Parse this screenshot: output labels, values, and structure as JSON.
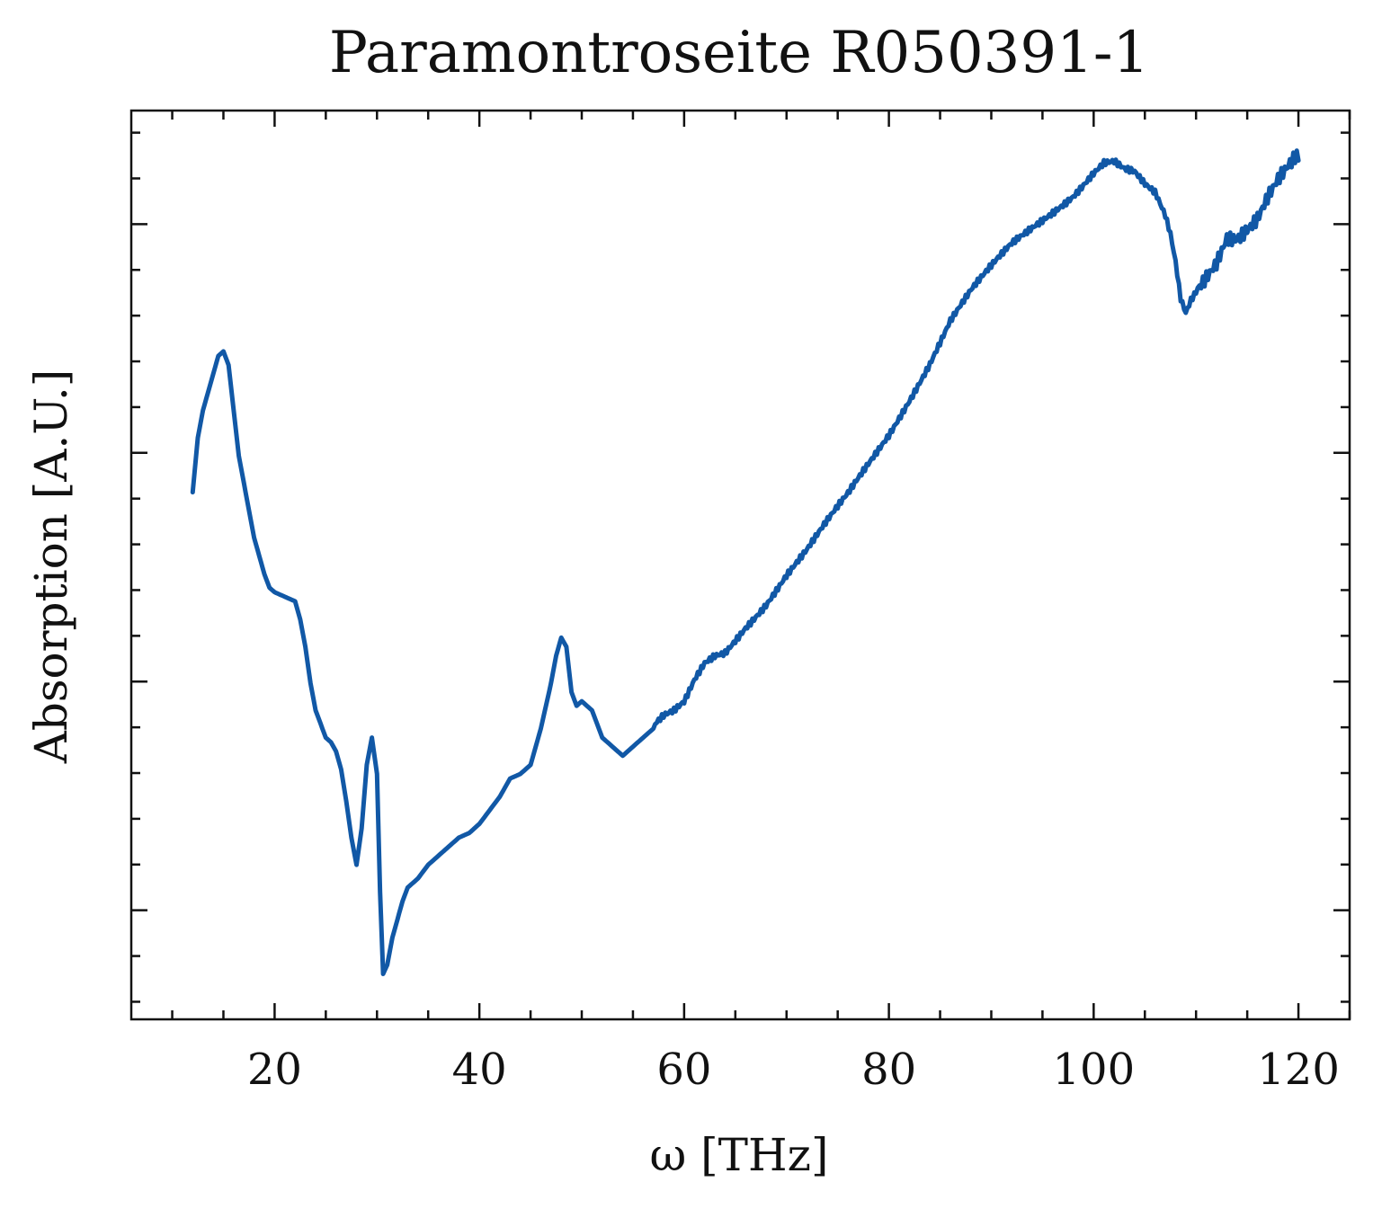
{
  "chart_data": {
    "type": "line",
    "title": "Paramontroseite R050391-1",
    "xlabel": "ω [THz]",
    "ylabel": "Absorption [A.U.]",
    "xlim": [
      6.0,
      125.0
    ],
    "ylim": [
      0.0,
      1.0
    ],
    "x_ticks": [
      20,
      40,
      60,
      80,
      100,
      120
    ],
    "y_ticks_unlabeled": [
      0.12,
      0.37,
      0.62,
      0.875
    ],
    "grid": false,
    "legend": "none",
    "series": [
      {
        "color": "#1158a6",
        "x": [
          12.0,
          12.5,
          13.0,
          13.5,
          14.0,
          14.5,
          15.0,
          15.5,
          16.0,
          16.5,
          17.0,
          17.5,
          18.0,
          18.5,
          19.0,
          19.5,
          20.0,
          21.0,
          22.0,
          22.5,
          23.0,
          23.5,
          24.0,
          24.5,
          25.0,
          25.5,
          26.0,
          26.5,
          27.0,
          27.5,
          28.0,
          28.5,
          29.0,
          29.5,
          30.0,
          30.3,
          30.6,
          31.0,
          31.5,
          32.0,
          32.5,
          33.0,
          34.0,
          35.0,
          36.0,
          37.0,
          38.0,
          39.0,
          40.0,
          41.0,
          42.0,
          43.0,
          44.0,
          45.0,
          46.0,
          47.0,
          47.5,
          48.0,
          48.5,
          49.0,
          49.5,
          50.0,
          51.0,
          52.0,
          52.5,
          53.0,
          54.0,
          55.0,
          56.0,
          57.0,
          58.0,
          59.0,
          60.0,
          61.0,
          62.0,
          63.0,
          64.0,
          65.0,
          66.0,
          68.0,
          70.0,
          72.0,
          74.0,
          76.0,
          78.0,
          80.0,
          82.0,
          84.0,
          86.0,
          88.0,
          90.0,
          92.0,
          94.0,
          96.0,
          98.0,
          100.0,
          101.0,
          102.0,
          103.0,
          104.0,
          105.0,
          106.0,
          107.0,
          107.5,
          108.0,
          108.5,
          109.0,
          109.5,
          110.0,
          110.5,
          111.0,
          112.0,
          113.0,
          114.0,
          115.0,
          116.0,
          117.0,
          118.0,
          119.0,
          120.0
        ],
        "y": [
          0.58,
          0.64,
          0.67,
          0.69,
          0.71,
          0.73,
          0.735,
          0.72,
          0.67,
          0.62,
          0.59,
          0.56,
          0.53,
          0.51,
          0.49,
          0.475,
          0.47,
          0.465,
          0.46,
          0.44,
          0.41,
          0.37,
          0.34,
          0.325,
          0.31,
          0.305,
          0.295,
          0.275,
          0.24,
          0.2,
          0.17,
          0.21,
          0.28,
          0.31,
          0.27,
          0.14,
          0.05,
          0.06,
          0.09,
          0.11,
          0.13,
          0.145,
          0.155,
          0.17,
          0.18,
          0.19,
          0.2,
          0.205,
          0.215,
          0.23,
          0.245,
          0.265,
          0.27,
          0.28,
          0.32,
          0.37,
          0.4,
          0.42,
          0.41,
          0.36,
          0.345,
          0.35,
          0.34,
          0.31,
          0.305,
          0.3,
          0.29,
          0.3,
          0.31,
          0.32,
          0.33,
          0.335,
          0.345,
          0.37,
          0.39,
          0.4,
          0.405,
          0.42,
          0.435,
          0.46,
          0.49,
          0.515,
          0.545,
          0.575,
          0.61,
          0.645,
          0.685,
          0.725,
          0.77,
          0.8,
          0.825,
          0.85,
          0.87,
          0.89,
          0.91,
          0.935,
          0.945,
          0.945,
          0.935,
          0.93,
          0.915,
          0.905,
          0.88,
          0.86,
          0.83,
          0.79,
          0.775,
          0.79,
          0.8,
          0.81,
          0.82,
          0.84,
          0.87,
          0.87,
          0.88,
          0.89,
          0.91,
          0.925,
          0.935,
          0.945
        ]
      }
    ]
  }
}
